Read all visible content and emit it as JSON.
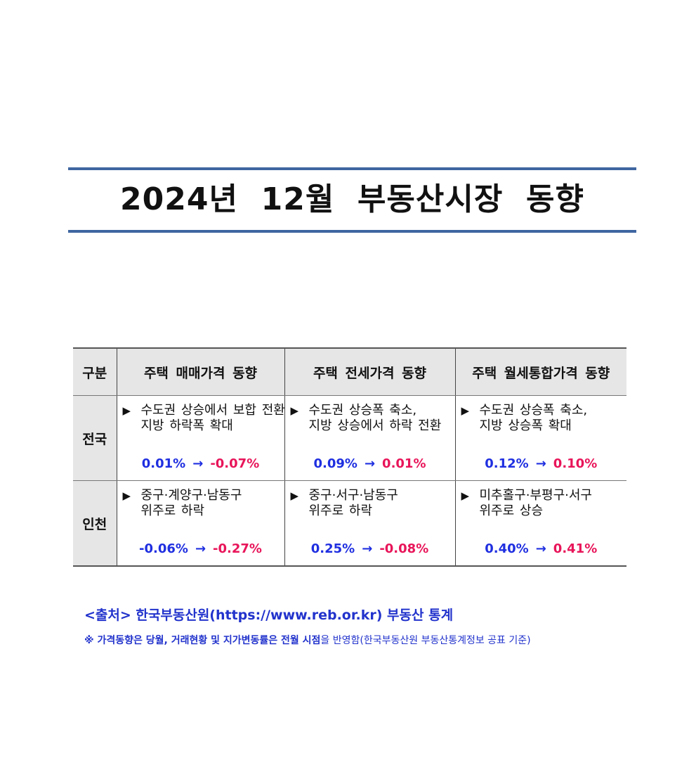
{
  "title": "2024년  12월  부동산시장  동향",
  "colors": {
    "rule": "#3f66a0",
    "header_bg": "#e6e6e6",
    "rate_before": "#1f2fe0",
    "rate_after": "#e8155a",
    "source_text": "#2233cc"
  },
  "table": {
    "headers": [
      "구분",
      "주택 매매가격 동향",
      "주택 전세가격 동향",
      "주택 월세통합가격 동향"
    ],
    "bullet_icon": "▶",
    "rows": [
      {
        "region": "전국",
        "cells": [
          {
            "line1": "수도권 상승에서 보합 전환",
            "line2": "지방 하락폭 확대",
            "before": "0.01%",
            "arrow": "→",
            "after": "-0.07%"
          },
          {
            "line1": "수도권 상승폭 축소,",
            "line2": "지방 상승에서 하락 전환",
            "before": "0.09%",
            "arrow": "→",
            "after": "0.01%"
          },
          {
            "line1": "수도권 상승폭 축소,",
            "line2": "지방 상승폭 확대",
            "before": "0.12%",
            "arrow": "→",
            "after": "0.10%"
          }
        ]
      },
      {
        "region": "인천",
        "cells": [
          {
            "line1": "중구·계양구·남동구",
            "line2": "위주로 하락",
            "before": "-0.06%",
            "arrow": "→",
            "after": "-0.27%"
          },
          {
            "line1": "중구·서구·남동구",
            "line2": "위주로 하락",
            "before": "0.25%",
            "arrow": "→",
            "after": "-0.08%"
          },
          {
            "line1": "미추홀구·부평구·서구",
            "line2": "위주로 상승",
            "before": "0.40%",
            "arrow": "→",
            "after": "0.41%"
          }
        ]
      }
    ]
  },
  "source": "<출처> 한국부동산원(https://www.reb.or.kr) 부동산 통계",
  "note": {
    "bold": "※ 가격동향은 당월, 거래현황 및 지가변동률은 전월 시점",
    "regular": "을 반영함(한국부동산원 부동산통계정보 공표 기준)"
  }
}
